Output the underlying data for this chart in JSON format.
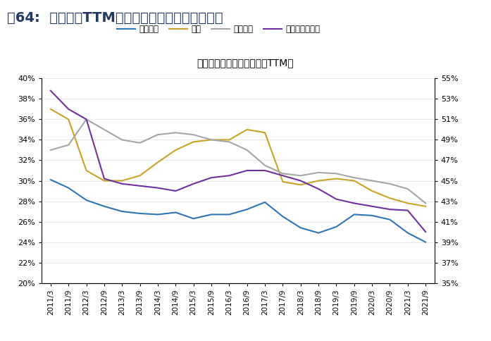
{
  "title_main": "图64:  毛利率（TTM）历史底部的创业板细分行业",
  "subtitle": "创业板细分行业：毛利率（TTM）",
  "x_labels": [
    "2011/3",
    "2011/9",
    "2012/3",
    "2012/9",
    "2013/3",
    "2013/9",
    "2014/3",
    "2014/9",
    "2015/3",
    "2015/9",
    "2016/3",
    "2016/9",
    "2017/3",
    "2017/9",
    "2018/3",
    "2018/9",
    "2019/3",
    "2019/9",
    "2020/3",
    "2020/9",
    "2021/3",
    "2021/9"
  ],
  "legend_labels": [
    "电气设备",
    "通信",
    "公用事业",
    "计算机（右轴）"
  ],
  "line_colors": [
    "#2e75b6",
    "#c9a227",
    "#a5a5a5",
    "#7030a0"
  ],
  "title_color": "#1f3864",
  "left_ylim": [
    0.2,
    0.4
  ],
  "right_ylim": [
    0.35,
    0.55
  ],
  "left_yticks": [
    0.2,
    0.22,
    0.24,
    0.26,
    0.28,
    0.3,
    0.32,
    0.34,
    0.36,
    0.38,
    0.4
  ],
  "right_yticks": [
    0.35,
    0.37,
    0.39,
    0.41,
    0.43,
    0.45,
    0.47,
    0.49,
    0.51,
    0.53,
    0.55
  ],
  "elec": [
    0.301,
    0.293,
    0.281,
    0.275,
    0.27,
    0.268,
    0.267,
    0.269,
    0.263,
    0.267,
    0.267,
    0.272,
    0.279,
    0.265,
    0.254,
    0.249,
    0.255,
    0.267,
    0.266,
    0.262,
    0.249,
    0.24
  ],
  "telecom": [
    0.37,
    0.36,
    0.31,
    0.3,
    0.3,
    0.305,
    0.318,
    0.33,
    0.338,
    0.34,
    0.34,
    0.35,
    0.347,
    0.299,
    0.296,
    0.3,
    0.302,
    0.3,
    0.29,
    0.283,
    0.278,
    0.275
  ],
  "utility": [
    0.33,
    0.335,
    0.36,
    0.35,
    0.34,
    0.337,
    0.345,
    0.347,
    0.345,
    0.34,
    0.338,
    0.33,
    0.315,
    0.307,
    0.305,
    0.308,
    0.307,
    0.303,
    0.3,
    0.297,
    0.292,
    0.278
  ],
  "computer": [
    0.538,
    0.52,
    0.51,
    0.452,
    0.447,
    0.445,
    0.443,
    0.44,
    0.447,
    0.453,
    0.455,
    0.46,
    0.46,
    0.455,
    0.45,
    0.442,
    0.432,
    0.428,
    0.425,
    0.422,
    0.421,
    0.4
  ]
}
